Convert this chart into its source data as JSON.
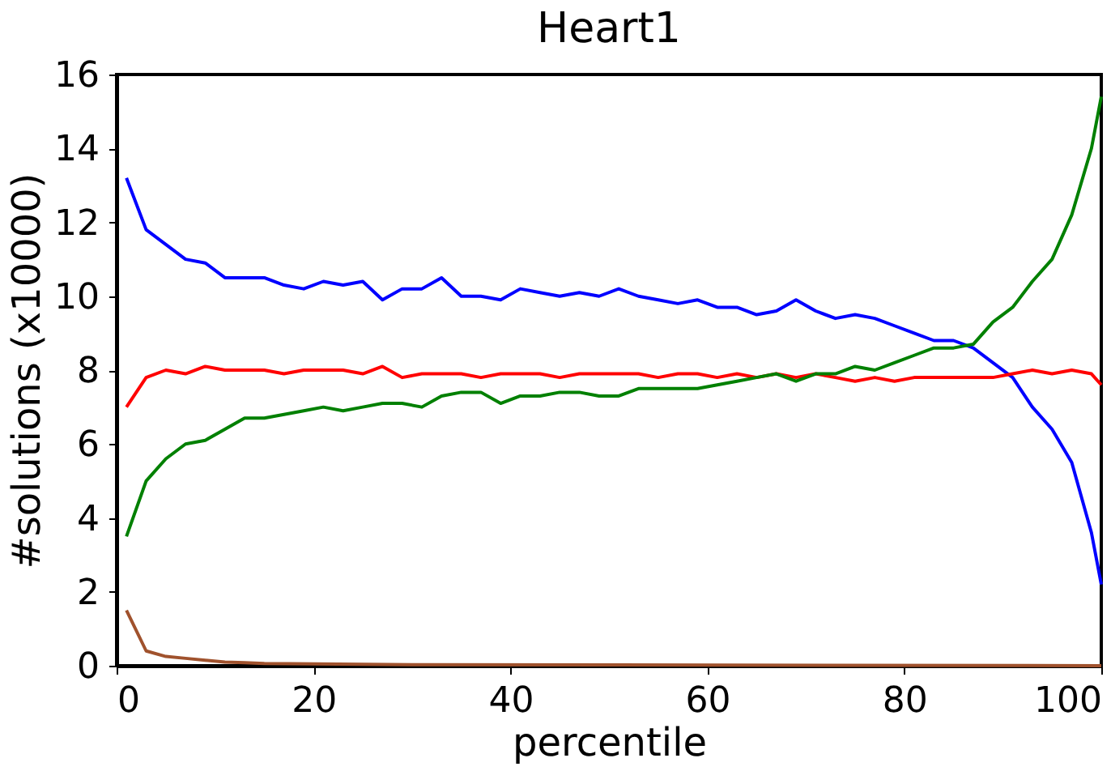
{
  "chart_data": {
    "type": "line",
    "title": "Heart1",
    "xlabel": "percentile",
    "ylabel": "#solutions (x10000)",
    "x": [
      1,
      3,
      5,
      7,
      9,
      11,
      13,
      15,
      17,
      19,
      21,
      23,
      25,
      27,
      29,
      31,
      33,
      35,
      37,
      39,
      41,
      43,
      45,
      47,
      49,
      51,
      53,
      55,
      57,
      59,
      61,
      63,
      65,
      67,
      69,
      71,
      73,
      75,
      77,
      79,
      81,
      83,
      85,
      87,
      89,
      91,
      93,
      95,
      97,
      99,
      100
    ],
    "series": [
      {
        "color": "#0000ff",
        "values": [
          13.2,
          11.8,
          11.4,
          11.0,
          10.9,
          10.5,
          10.5,
          10.5,
          10.3,
          10.2,
          10.4,
          10.3,
          10.4,
          9.9,
          10.2,
          10.2,
          10.5,
          10.0,
          10.0,
          9.9,
          10.2,
          10.1,
          10.0,
          10.1,
          10.0,
          10.2,
          10.0,
          9.9,
          9.8,
          9.9,
          9.7,
          9.7,
          9.5,
          9.6,
          9.9,
          9.6,
          9.4,
          9.5,
          9.4,
          9.2,
          9.0,
          8.8,
          8.8,
          8.6,
          8.2,
          7.8,
          7.0,
          6.4,
          5.5,
          3.6,
          2.2
        ]
      },
      {
        "color": "#ff0000",
        "values": [
          7.0,
          7.8,
          8.0,
          7.9,
          8.1,
          8.0,
          8.0,
          8.0,
          7.9,
          8.0,
          8.0,
          8.0,
          7.9,
          8.1,
          7.8,
          7.9,
          7.9,
          7.9,
          7.8,
          7.9,
          7.9,
          7.9,
          7.8,
          7.9,
          7.9,
          7.9,
          7.9,
          7.8,
          7.9,
          7.9,
          7.8,
          7.9,
          7.8,
          7.9,
          7.8,
          7.9,
          7.8,
          7.7,
          7.8,
          7.7,
          7.8,
          7.8,
          7.8,
          7.8,
          7.8,
          7.9,
          8.0,
          7.9,
          8.0,
          7.9,
          7.6
        ]
      },
      {
        "color": "#008000",
        "values": [
          3.5,
          5.0,
          5.6,
          6.0,
          6.1,
          6.4,
          6.7,
          6.7,
          6.8,
          6.9,
          7.0,
          6.9,
          7.0,
          7.1,
          7.1,
          7.0,
          7.3,
          7.4,
          7.4,
          7.1,
          7.3,
          7.3,
          7.4,
          7.4,
          7.3,
          7.3,
          7.5,
          7.5,
          7.5,
          7.5,
          7.6,
          7.7,
          7.8,
          7.9,
          7.7,
          7.9,
          7.9,
          8.1,
          8.0,
          8.2,
          8.4,
          8.6,
          8.6,
          8.7,
          9.3,
          9.7,
          10.4,
          11.0,
          12.2,
          14.0,
          15.4
        ]
      },
      {
        "color": "#a0522d",
        "x": [
          1,
          3,
          5,
          7,
          9,
          11,
          13,
          15,
          20,
          30,
          50,
          100
        ],
        "values": [
          1.5,
          0.4,
          0.25,
          0.2,
          0.15,
          0.1,
          0.08,
          0.06,
          0.05,
          0.03,
          0.02,
          0.0
        ]
      }
    ],
    "xlim": [
      0,
      100
    ],
    "xticks": [
      0,
      20,
      40,
      60,
      80,
      100
    ],
    "ylim": [
      0,
      16
    ],
    "yticks": [
      0,
      2,
      4,
      6,
      8,
      10,
      12,
      14,
      16
    ],
    "grid": false,
    "legend": false
  }
}
